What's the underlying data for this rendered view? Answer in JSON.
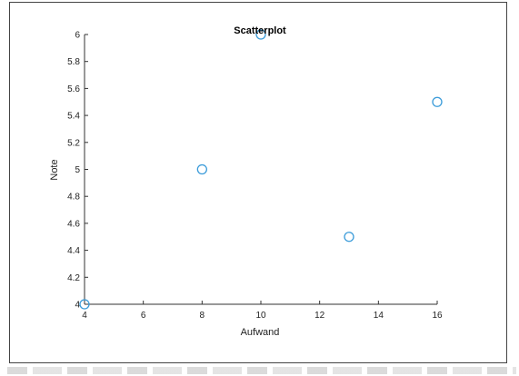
{
  "chart_data": {
    "type": "scatter",
    "title": "Scatterplot",
    "xlabel": "Aufwand",
    "ylabel": "Note",
    "xlim": [
      4,
      16
    ],
    "ylim": [
      4,
      6
    ],
    "xticks": [
      "4",
      "6",
      "8",
      "10",
      "12",
      "14",
      "16"
    ],
    "yticks": [
      "4",
      "4.2",
      "4.4",
      "4.6",
      "4.8",
      "5",
      "5.2",
      "5.4",
      "5.6",
      "5.8",
      "6"
    ],
    "grid": false,
    "points": [
      {
        "x": 4,
        "y": 4
      },
      {
        "x": 8,
        "y": 5
      },
      {
        "x": 10,
        "y": 6
      },
      {
        "x": 13,
        "y": 4.5
      },
      {
        "x": 16,
        "y": 5.5
      }
    ],
    "marker_color": "#3a9bd9",
    "axis_color": "#333333"
  }
}
